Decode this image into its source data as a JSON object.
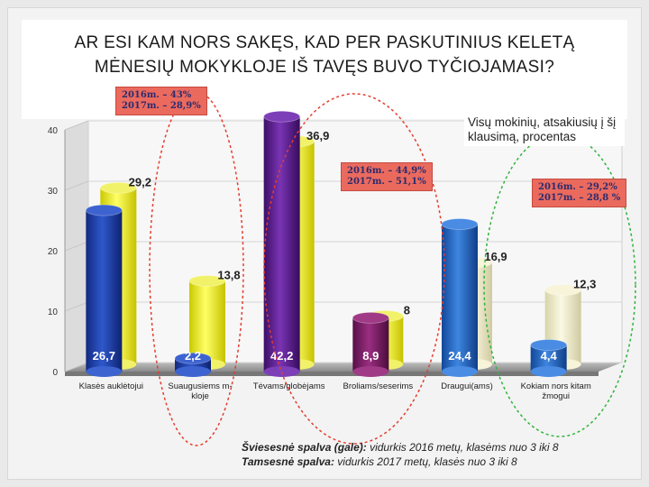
{
  "slide": {
    "title": "AR ESI KAM NORS SAKĘS, KAD PER PASKUTINIUS KELETĄ MĖNESIŲ MOKYKLOJE IŠ TAVĘS BUVO TYČIOJAMASI?",
    "legend_note": "Visų mokinių, atsakiusių į šį klausimą, procentas",
    "notes": [
      {
        "line1": "2016m. – 43%",
        "line2": "2017m. – 28,9%"
      },
      {
        "line1": "2016m. – 44,9%",
        "line2": "2017m. – 51,1%"
      },
      {
        "line1": "2016m. – 29,2%",
        "line2": "2017m. – 28,8 %"
      }
    ],
    "footnote": {
      "line1_bold": "Šviesesnė spalva (gale):",
      "line1_rest": " vidurkis 2016 metų, klasėms nuo  3 iki  8",
      "line2_bold": "Tamsesnė spalva:",
      "line2_rest": " vidurkis 2017 metų, klasės nuo 3 iki 8"
    },
    "colors": {
      "note_fill": "#eb6a5e",
      "circle_red": "#e53d2f",
      "circle_green": "#2fb43b"
    }
  },
  "chart_data": {
    "type": "bar",
    "ylim": [
      0,
      40
    ],
    "yticks": [
      "0",
      "10",
      "20",
      "30",
      "40"
    ],
    "categories": [
      "Klasės auklėtojui",
      "Suaugusiems m-kloje",
      "Tėvams/globėjams",
      "Broliams/seserims",
      "Draugui(ams)",
      "Kokiam nors kitam žmogui"
    ],
    "category_lines": [
      [
        "Klasės auklėtojui"
      ],
      [
        "Suaugusiems m-",
        "kloje"
      ],
      [
        "Tėvams/globėjams"
      ],
      [
        "Broliams/seserims"
      ],
      [
        "Draugui(ams)"
      ],
      [
        "Kokiam nors kitam",
        "žmogui"
      ]
    ],
    "series": [
      {
        "values": [
          29.2,
          13.8,
          36.9,
          8,
          16.9,
          12.3
        ],
        "labels": [
          "29,2",
          "13,8",
          "36,9",
          "8",
          "16,9",
          "12,3"
        ]
      },
      {
        "values": [
          26.7,
          2.2,
          42.2,
          8.9,
          24.4,
          4.4
        ],
        "labels": [
          "26,7",
          "2,2",
          "42,2",
          "8,9",
          "24,4",
          "4,4"
        ]
      }
    ],
    "bar_colors": [
      {
        "back": "#ecec2a",
        "front": "#1f3fa8"
      },
      {
        "back": "#ecec2a",
        "front": "#1f3fa8"
      },
      {
        "back": "#ecec2a",
        "front": "#5a1f8a"
      },
      {
        "back": "#ecec2a",
        "front": "#7a1f60"
      },
      {
        "back": "#eeeac2",
        "front": "#1f62b8"
      },
      {
        "back": "#eeeac2",
        "front": "#1f62b8"
      }
    ]
  }
}
